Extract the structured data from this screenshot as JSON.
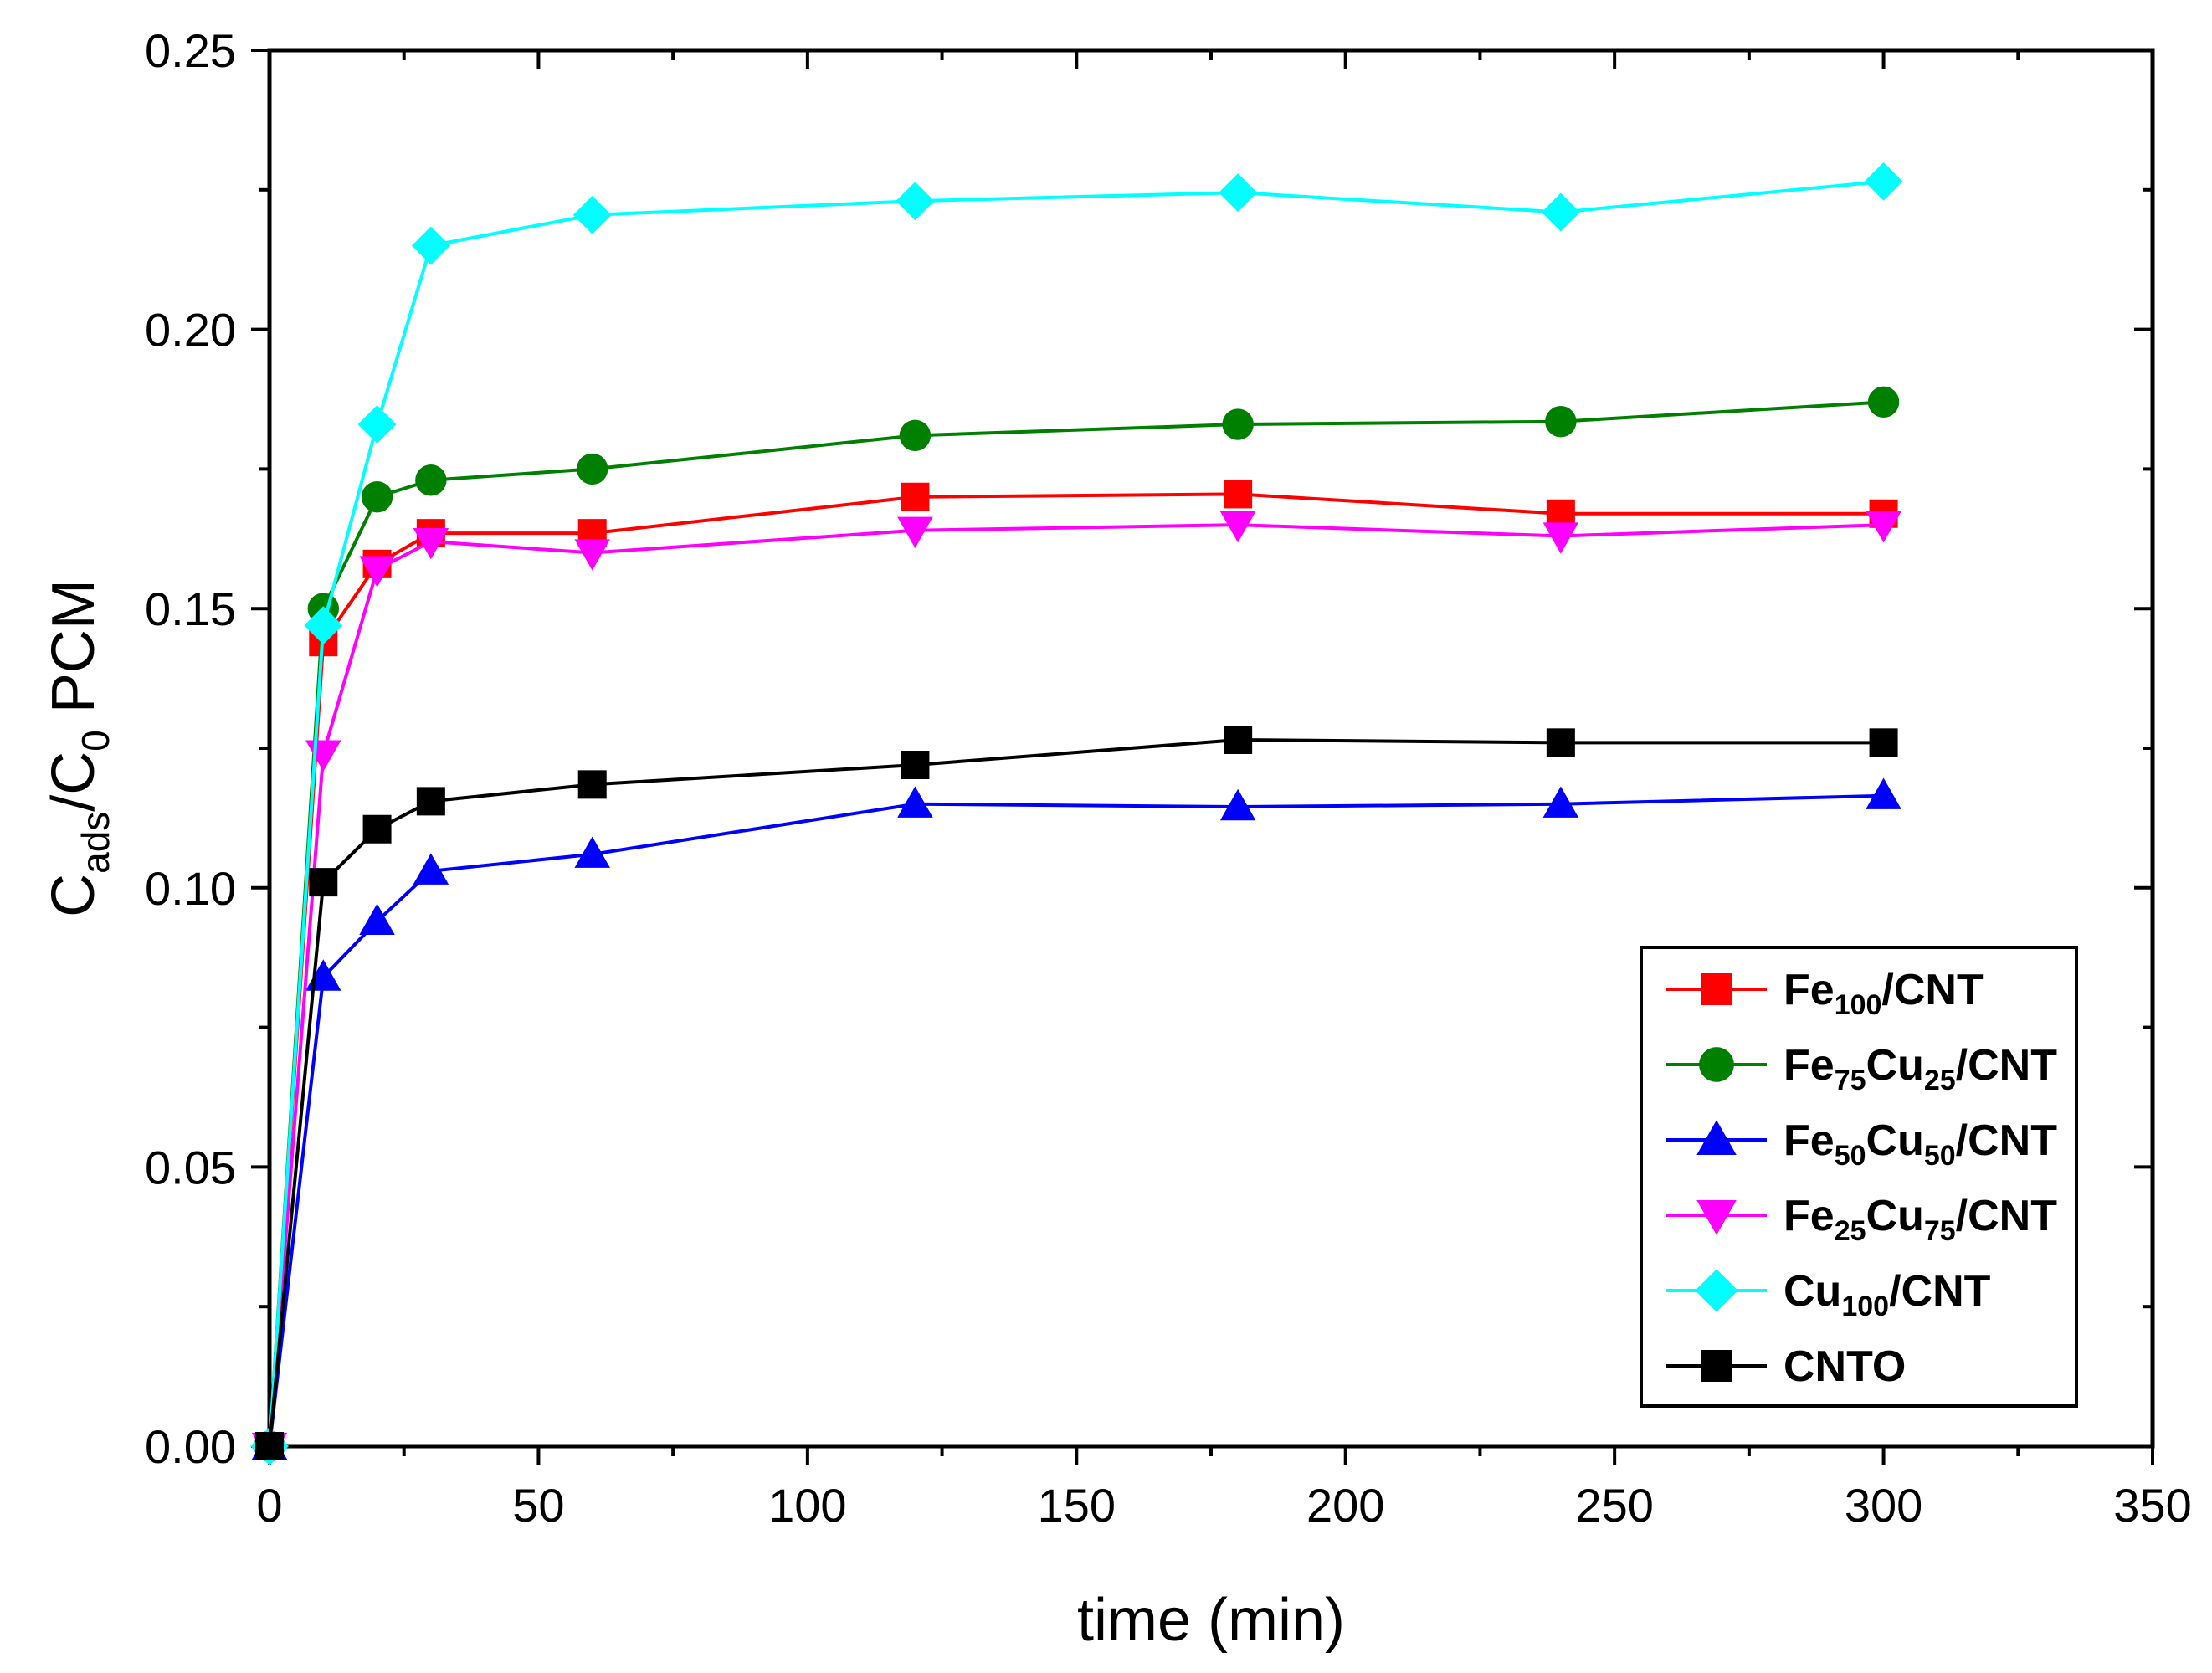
{
  "chart_data": {
    "type": "line",
    "title": "",
    "xlabel": "time (min)",
    "ylabel": {
      "base": "C",
      "sub": "ads",
      "mid": "/C",
      "sub2": "0",
      "rest": " PCM"
    },
    "xlim": [
      0,
      350
    ],
    "ylim": [
      0,
      0.25
    ],
    "grid": false,
    "legend_position": "bottom-right",
    "x_ticks": [
      {
        "value": 0,
        "label": "0"
      },
      {
        "value": 50,
        "label": "50"
      },
      {
        "value": 100,
        "label": "100"
      },
      {
        "value": 150,
        "label": "150"
      },
      {
        "value": 200,
        "label": "200"
      },
      {
        "value": 250,
        "label": "250"
      },
      {
        "value": 300,
        "label": "300"
      },
      {
        "value": 350,
        "label": "350"
      }
    ],
    "y_ticks": [
      {
        "value": 0,
        "label": "0.00"
      },
      {
        "value": 0.05,
        "label": "0.05"
      },
      {
        "value": 0.1,
        "label": "0.10"
      },
      {
        "value": 0.15,
        "label": "0.15"
      },
      {
        "value": 0.2,
        "label": "0.20"
      },
      {
        "value": 0.25,
        "label": "0.25"
      }
    ],
    "x_minor_step": 25,
    "y_minor_step": 0.025,
    "series": [
      {
        "id": "fe100",
        "name_parts": [
          {
            "t": "Fe"
          },
          {
            "t": "100",
            "sub": true
          },
          {
            "t": "/CNT"
          }
        ],
        "color": "#ff0000",
        "marker": "square",
        "x": [
          0,
          10,
          20,
          30,
          60,
          120,
          180,
          240,
          300
        ],
        "y": [
          0,
          0.144,
          0.158,
          0.1635,
          0.1635,
          0.17,
          0.1705,
          0.167,
          0.167
        ]
      },
      {
        "id": "fe75cu25",
        "name_parts": [
          {
            "t": "Fe"
          },
          {
            "t": "75",
            "sub": true
          },
          {
            "t": "Cu"
          },
          {
            "t": "25",
            "sub": true
          },
          {
            "t": "/CNT"
          }
        ],
        "color": "#008000",
        "marker": "circle",
        "x": [
          0,
          10,
          20,
          30,
          60,
          120,
          180,
          240,
          300
        ],
        "y": [
          0,
          0.15,
          0.17,
          0.173,
          0.175,
          0.181,
          0.183,
          0.1835,
          0.187
        ]
      },
      {
        "id": "fe50cu50",
        "name_parts": [
          {
            "t": "Fe"
          },
          {
            "t": "50",
            "sub": true
          },
          {
            "t": "Cu"
          },
          {
            "t": "50",
            "sub": true
          },
          {
            "t": "/CNT"
          }
        ],
        "color": "#0000ff",
        "marker": "triangle-up",
        "x": [
          0,
          10,
          20,
          30,
          60,
          120,
          180,
          240,
          300
        ],
        "y": [
          0,
          0.084,
          0.094,
          0.103,
          0.106,
          0.115,
          0.1145,
          0.115,
          0.1165
        ]
      },
      {
        "id": "fe25cu75",
        "name_parts": [
          {
            "t": "Fe"
          },
          {
            "t": "25",
            "sub": true
          },
          {
            "t": "Cu"
          },
          {
            "t": "75",
            "sub": true
          },
          {
            "t": "/CNT"
          }
        ],
        "color": "#ff00ff",
        "marker": "triangle-down",
        "x": [
          0,
          10,
          20,
          30,
          60,
          120,
          180,
          240,
          300
        ],
        "y": [
          0,
          0.124,
          0.157,
          0.162,
          0.16,
          0.164,
          0.165,
          0.163,
          0.165
        ]
      },
      {
        "id": "cu100",
        "name_parts": [
          {
            "t": "Cu"
          },
          {
            "t": "100",
            "sub": true
          },
          {
            "t": "/CNT"
          }
        ],
        "color": "#00ffff",
        "marker": "diamond",
        "x": [
          0,
          10,
          20,
          30,
          60,
          120,
          180,
          240,
          300
        ],
        "y": [
          0,
          0.147,
          0.183,
          0.215,
          0.2205,
          0.223,
          0.2245,
          0.221,
          0.2265
        ]
      },
      {
        "id": "cnto",
        "name_parts": [
          {
            "t": "CNTO"
          }
        ],
        "color": "#000000",
        "marker": "square",
        "x": [
          0,
          10,
          20,
          30,
          60,
          120,
          180,
          240,
          300
        ],
        "y": [
          0,
          0.101,
          0.1105,
          0.1155,
          0.1185,
          0.122,
          0.1265,
          0.126,
          0.126
        ]
      }
    ]
  }
}
